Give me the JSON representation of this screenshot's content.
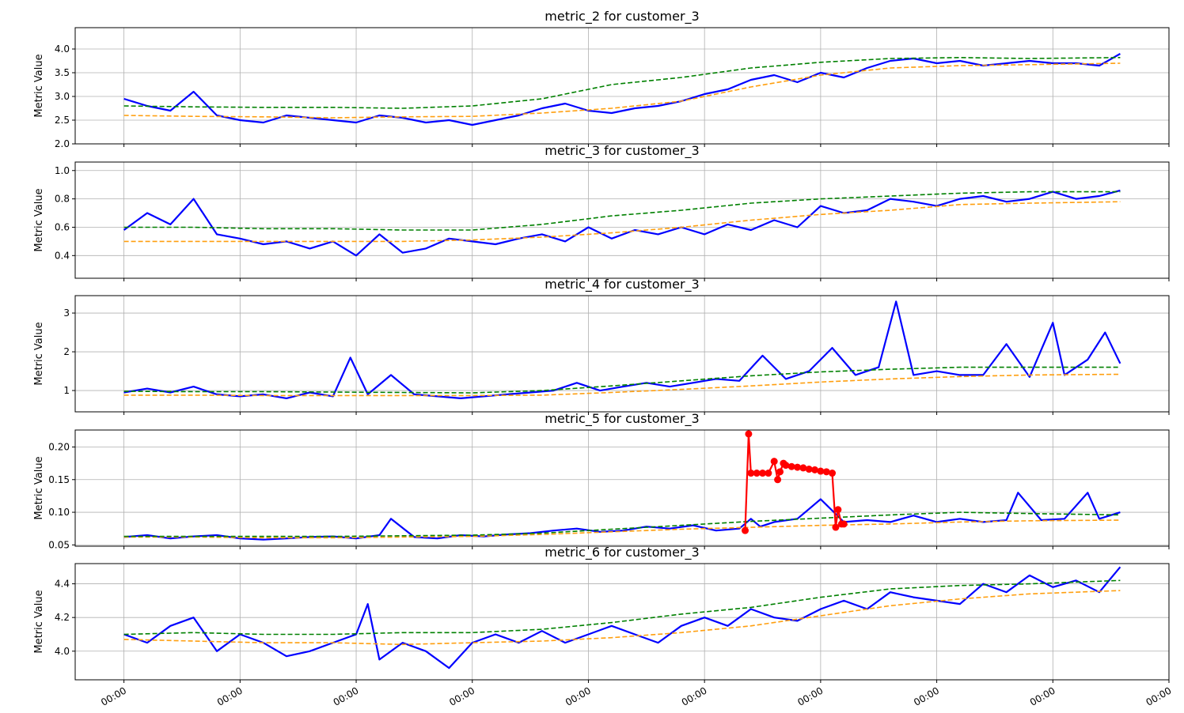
{
  "chart_data": [
    {
      "type": "line",
      "title": "metric_2 for customer_3",
      "ylabel": "Metric Value",
      "xlabel": "",
      "ylim": [
        2.0,
        4.45
      ],
      "yticks": [
        2.0,
        2.5,
        3.0,
        3.5,
        4.0
      ],
      "ytick_labels": [
        "2.0",
        "2.5",
        "3.0",
        "3.5",
        "4.0"
      ],
      "grid": true,
      "series_colors": [
        "#0000ff",
        "#ff9f0f",
        "#008000"
      ],
      "series_styles": [
        "solid",
        "dashed",
        "dashed"
      ],
      "series": [
        {
          "x": [
            0,
            20,
            40,
            60,
            80,
            100,
            120,
            140,
            160,
            180,
            200,
            220,
            240,
            260,
            280,
            300,
            320,
            340,
            360,
            380,
            400,
            420,
            440,
            460,
            480,
            500,
            520,
            540,
            560,
            580,
            600,
            620,
            640,
            660,
            680,
            700,
            720,
            740,
            760,
            780,
            800,
            820,
            840,
            858
          ],
          "values": [
            2.95,
            2.8,
            2.7,
            3.1,
            2.6,
            2.5,
            2.45,
            2.6,
            2.55,
            2.5,
            2.45,
            2.6,
            2.55,
            2.45,
            2.5,
            2.4,
            2.5,
            2.6,
            2.75,
            2.85,
            2.7,
            2.65,
            2.75,
            2.8,
            2.9,
            3.05,
            3.15,
            3.35,
            3.45,
            3.3,
            3.5,
            3.4,
            3.6,
            3.75,
            3.8,
            3.7,
            3.75,
            3.65,
            3.7,
            3.75,
            3.7,
            3.7,
            3.65,
            3.9
          ]
        },
        {
          "x": [
            0,
            60,
            120,
            180,
            240,
            300,
            360,
            420,
            480,
            540,
            600,
            660,
            720,
            780,
            858
          ],
          "values": [
            2.6,
            2.58,
            2.57,
            2.55,
            2.57,
            2.58,
            2.65,
            2.75,
            2.9,
            3.2,
            3.45,
            3.6,
            3.65,
            3.67,
            3.7
          ]
        },
        {
          "x": [
            0,
            60,
            120,
            180,
            240,
            300,
            360,
            420,
            480,
            540,
            600,
            660,
            720,
            780,
            858
          ],
          "values": [
            2.8,
            2.78,
            2.77,
            2.77,
            2.75,
            2.8,
            2.95,
            3.25,
            3.4,
            3.6,
            3.72,
            3.8,
            3.82,
            3.8,
            3.82
          ]
        }
      ]
    },
    {
      "type": "line",
      "title": "metric_3 for customer_3",
      "ylabel": "Metric Value",
      "xlabel": "",
      "ylim": [
        0.24,
        1.06
      ],
      "yticks": [
        0.4,
        0.6,
        0.8,
        1.0
      ],
      "ytick_labels": [
        "0.4",
        "0.6",
        "0.8",
        "1.0"
      ],
      "grid": true,
      "series_colors": [
        "#0000ff",
        "#ff9f0f",
        "#008000"
      ],
      "series_styles": [
        "solid",
        "dashed",
        "dashed"
      ],
      "series": [
        {
          "x": [
            0,
            20,
            40,
            60,
            80,
            100,
            120,
            140,
            160,
            180,
            200,
            220,
            240,
            260,
            280,
            300,
            320,
            340,
            360,
            380,
            400,
            420,
            440,
            460,
            480,
            500,
            520,
            540,
            560,
            580,
            600,
            620,
            640,
            660,
            680,
            700,
            720,
            740,
            760,
            780,
            800,
            820,
            840,
            858
          ],
          "values": [
            0.58,
            0.7,
            0.62,
            0.8,
            0.55,
            0.52,
            0.48,
            0.5,
            0.45,
            0.5,
            0.4,
            0.55,
            0.42,
            0.45,
            0.52,
            0.5,
            0.48,
            0.52,
            0.55,
            0.5,
            0.6,
            0.52,
            0.58,
            0.55,
            0.6,
            0.55,
            0.62,
            0.58,
            0.65,
            0.6,
            0.75,
            0.7,
            0.72,
            0.8,
            0.78,
            0.75,
            0.8,
            0.82,
            0.78,
            0.8,
            0.85,
            0.8,
            0.82,
            0.86
          ]
        },
        {
          "x": [
            0,
            60,
            120,
            180,
            240,
            300,
            360,
            420,
            480,
            540,
            600,
            660,
            720,
            780,
            858
          ],
          "values": [
            0.5,
            0.5,
            0.5,
            0.5,
            0.5,
            0.51,
            0.53,
            0.56,
            0.6,
            0.65,
            0.69,
            0.72,
            0.76,
            0.77,
            0.78
          ]
        },
        {
          "x": [
            0,
            60,
            120,
            180,
            240,
            300,
            360,
            420,
            480,
            540,
            600,
            660,
            720,
            780,
            858
          ],
          "values": [
            0.6,
            0.6,
            0.59,
            0.59,
            0.58,
            0.58,
            0.62,
            0.68,
            0.72,
            0.77,
            0.8,
            0.82,
            0.84,
            0.85,
            0.85
          ]
        }
      ]
    },
    {
      "type": "line",
      "title": "metric_4 for customer_3",
      "ylabel": "Metric Value",
      "xlabel": "",
      "ylim": [
        0.45,
        3.45
      ],
      "yticks": [
        1,
        2,
        3
      ],
      "ytick_labels": [
        "1",
        "2",
        "3"
      ],
      "grid": true,
      "series_colors": [
        "#0000ff",
        "#ff9f0f",
        "#008000"
      ],
      "series_styles": [
        "solid",
        "dashed",
        "dashed"
      ],
      "series": [
        {
          "x": [
            0,
            20,
            40,
            60,
            80,
            100,
            120,
            140,
            160,
            180,
            195,
            210,
            230,
            250,
            270,
            290,
            310,
            330,
            350,
            370,
            390,
            410,
            430,
            450,
            470,
            490,
            510,
            530,
            550,
            570,
            590,
            610,
            630,
            650,
            665,
            680,
            700,
            720,
            740,
            760,
            780,
            800,
            810,
            830,
            845,
            858
          ],
          "values": [
            0.95,
            1.05,
            0.95,
            1.1,
            0.9,
            0.85,
            0.9,
            0.8,
            0.95,
            0.85,
            1.85,
            0.9,
            1.4,
            0.9,
            0.85,
            0.8,
            0.85,
            0.9,
            0.95,
            1.0,
            1.2,
            1.0,
            1.1,
            1.2,
            1.1,
            1.2,
            1.3,
            1.25,
            1.9,
            1.3,
            1.5,
            2.1,
            1.4,
            1.6,
            3.3,
            1.4,
            1.5,
            1.4,
            1.4,
            2.2,
            1.35,
            2.75,
            1.4,
            1.8,
            2.5,
            1.7
          ]
        },
        {
          "x": [
            0,
            60,
            120,
            180,
            240,
            300,
            360,
            420,
            480,
            540,
            600,
            660,
            720,
            780,
            858
          ],
          "values": [
            0.88,
            0.88,
            0.87,
            0.87,
            0.87,
            0.87,
            0.88,
            0.95,
            1.03,
            1.12,
            1.22,
            1.3,
            1.36,
            1.4,
            1.42
          ]
        },
        {
          "x": [
            0,
            60,
            120,
            180,
            240,
            300,
            360,
            420,
            480,
            540,
            600,
            660,
            720,
            780,
            858
          ],
          "values": [
            0.98,
            0.97,
            0.97,
            0.96,
            0.95,
            0.94,
            1.0,
            1.12,
            1.25,
            1.38,
            1.48,
            1.55,
            1.6,
            1.6,
            1.6
          ]
        }
      ]
    },
    {
      "type": "line",
      "title": "metric_5 for customer_3",
      "ylabel": "Metric Value",
      "xlabel": "",
      "ylim": [
        0.048,
        0.226
      ],
      "yticks": [
        0.05,
        0.1,
        0.15,
        0.2
      ],
      "ytick_labels": [
        "0.05",
        "0.10",
        "0.15",
        "0.20"
      ],
      "grid": true,
      "series_colors": [
        "#0000ff",
        "#ff9f0f",
        "#008000",
        "#ff0000"
      ],
      "series_styles": [
        "solid",
        "dashed",
        "dashed",
        "solid-markers"
      ],
      "series": [
        {
          "x": [
            0,
            20,
            40,
            60,
            80,
            100,
            120,
            140,
            160,
            180,
            200,
            220,
            230,
            250,
            270,
            290,
            310,
            330,
            350,
            370,
            390,
            410,
            430,
            450,
            470,
            490,
            510,
            530,
            540,
            548,
            560,
            580,
            600,
            620,
            640,
            660,
            680,
            700,
            720,
            740,
            760,
            770,
            790,
            810,
            830,
            840,
            858
          ],
          "values": [
            0.062,
            0.065,
            0.06,
            0.063,
            0.065,
            0.06,
            0.058,
            0.06,
            0.062,
            0.063,
            0.06,
            0.065,
            0.09,
            0.062,
            0.06,
            0.065,
            0.063,
            0.066,
            0.068,
            0.072,
            0.075,
            0.07,
            0.072,
            0.078,
            0.075,
            0.08,
            0.072,
            0.075,
            0.09,
            0.078,
            0.085,
            0.09,
            0.12,
            0.085,
            0.088,
            0.085,
            0.095,
            0.085,
            0.09,
            0.085,
            0.088,
            0.13,
            0.088,
            0.09,
            0.13,
            0.09,
            0.1
          ]
        },
        {
          "x": [
            0,
            60,
            120,
            180,
            240,
            300,
            360,
            420,
            480,
            540,
            600,
            660,
            720,
            780,
            858
          ],
          "values": [
            0.062,
            0.062,
            0.061,
            0.061,
            0.062,
            0.063,
            0.066,
            0.07,
            0.074,
            0.077,
            0.08,
            0.082,
            0.085,
            0.087,
            0.088
          ]
        },
        {
          "x": [
            0,
            60,
            120,
            180,
            240,
            300,
            360,
            420,
            480,
            540,
            600,
            660,
            720,
            780,
            858
          ],
          "values": [
            0.063,
            0.063,
            0.063,
            0.063,
            0.064,
            0.065,
            0.068,
            0.074,
            0.08,
            0.086,
            0.091,
            0.096,
            0.1,
            0.098,
            0.096
          ]
        },
        {
          "x": [
            535,
            538,
            540,
            545,
            550,
            555,
            560,
            563,
            565,
            568,
            570,
            575,
            580,
            585,
            590,
            595,
            600,
            605,
            610,
            613,
            615,
            618,
            620
          ],
          "values": [
            0.072,
            0.22,
            0.16,
            0.16,
            0.16,
            0.16,
            0.178,
            0.15,
            0.162,
            0.175,
            0.172,
            0.17,
            0.169,
            0.168,
            0.166,
            0.165,
            0.163,
            0.162,
            0.16,
            0.077,
            0.104,
            0.082,
            0.082
          ]
        }
      ]
    },
    {
      "type": "line",
      "title": "metric_6 for customer_3",
      "ylabel": "Metric Value",
      "xlabel": "",
      "ylim": [
        3.83,
        4.52
      ],
      "yticks": [
        4.0,
        4.2,
        4.4
      ],
      "ytick_labels": [
        "4.0",
        "4.2",
        "4.4"
      ],
      "grid": true,
      "series_colors": [
        "#0000ff",
        "#ff9f0f",
        "#008000"
      ],
      "series_styles": [
        "solid",
        "dashed",
        "dashed"
      ],
      "series": [
        {
          "x": [
            0,
            20,
            40,
            60,
            80,
            100,
            120,
            140,
            160,
            180,
            200,
            210,
            220,
            240,
            260,
            280,
            300,
            320,
            340,
            360,
            380,
            400,
            420,
            440,
            460,
            480,
            500,
            520,
            540,
            560,
            580,
            600,
            620,
            640,
            660,
            680,
            700,
            720,
            740,
            760,
            780,
            800,
            820,
            840,
            858
          ],
          "values": [
            4.1,
            4.05,
            4.15,
            4.2,
            4.0,
            4.1,
            4.05,
            3.97,
            4.0,
            4.05,
            4.1,
            4.28,
            3.95,
            4.05,
            4.0,
            3.9,
            4.05,
            4.1,
            4.05,
            4.12,
            4.05,
            4.1,
            4.15,
            4.1,
            4.05,
            4.15,
            4.2,
            4.15,
            4.25,
            4.2,
            4.18,
            4.25,
            4.3,
            4.25,
            4.35,
            4.32,
            4.3,
            4.28,
            4.4,
            4.35,
            4.45,
            4.38,
            4.42,
            4.35,
            4.5
          ]
        },
        {
          "x": [
            0,
            60,
            120,
            180,
            240,
            300,
            360,
            420,
            480,
            540,
            600,
            660,
            720,
            780,
            858
          ],
          "values": [
            4.07,
            4.06,
            4.05,
            4.05,
            4.04,
            4.05,
            4.06,
            4.08,
            4.11,
            4.15,
            4.21,
            4.27,
            4.31,
            4.34,
            4.36
          ]
        },
        {
          "x": [
            0,
            60,
            120,
            180,
            240,
            300,
            360,
            420,
            480,
            540,
            600,
            660,
            720,
            780,
            858
          ],
          "values": [
            4.1,
            4.11,
            4.1,
            4.1,
            4.11,
            4.11,
            4.13,
            4.17,
            4.22,
            4.26,
            4.32,
            4.37,
            4.39,
            4.4,
            4.42
          ]
        }
      ]
    }
  ],
  "shared_x": {
    "xlim": [
      -42,
      900
    ],
    "ticks": [
      0,
      100,
      200,
      300,
      400,
      500,
      600,
      700,
      800,
      900
    ],
    "tick_labels": [
      "00:00",
      "00:00",
      "00:00",
      "00:00",
      "00:00",
      "00:00",
      "00:00",
      "00:00",
      "00:00",
      "00:00"
    ]
  }
}
